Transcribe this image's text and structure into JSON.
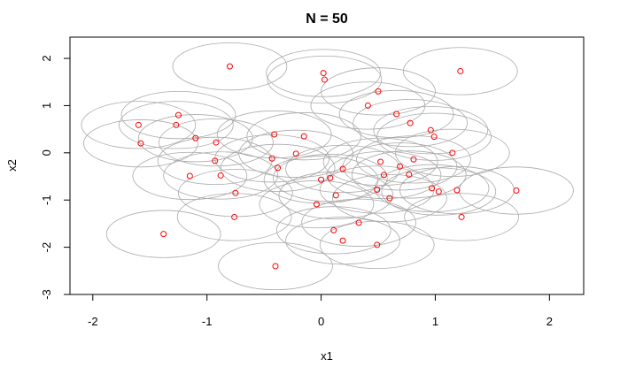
{
  "chart_data": {
    "type": "scatter",
    "title": "N = 50",
    "xlabel": "x1",
    "ylabel": "x2",
    "xlim": [
      -2.2,
      2.3
    ],
    "ylim": [
      -3.0,
      2.45
    ],
    "x_ticks": [
      -2,
      -1,
      0,
      1,
      2
    ],
    "y_ticks": [
      -3,
      -2,
      -1,
      0,
      1,
      2
    ],
    "x_tick_labels": [
      "-2",
      "-1",
      "0",
      "1",
      "2"
    ],
    "y_tick_labels": [
      "-3",
      "-2",
      "-1",
      "0",
      "1",
      "2"
    ],
    "grid": false,
    "circle_radius": 0.5,
    "point_color": "#ff0000",
    "circle_color": "#aaaaaa",
    "points": [
      {
        "x": -1.6,
        "y": 0.59
      },
      {
        "x": -1.58,
        "y": 0.2
      },
      {
        "x": -1.38,
        "y": -1.72
      },
      {
        "x": -1.25,
        "y": 0.8
      },
      {
        "x": -1.27,
        "y": 0.59
      },
      {
        "x": -1.15,
        "y": -0.49
      },
      {
        "x": -1.1,
        "y": 0.31
      },
      {
        "x": -0.92,
        "y": 0.22
      },
      {
        "x": -0.93,
        "y": -0.17
      },
      {
        "x": -0.88,
        "y": -0.48
      },
      {
        "x": -0.8,
        "y": 1.83
      },
      {
        "x": -0.75,
        "y": -0.85
      },
      {
        "x": -0.76,
        "y": -1.36
      },
      {
        "x": -0.41,
        "y": 0.39
      },
      {
        "x": -0.43,
        "y": -0.12
      },
      {
        "x": -0.38,
        "y": -0.32
      },
      {
        "x": -0.4,
        "y": -2.4
      },
      {
        "x": -0.15,
        "y": 0.35
      },
      {
        "x": -0.22,
        "y": -0.02
      },
      {
        "x": -0.04,
        "y": -1.09
      },
      {
        "x": 0.02,
        "y": 1.69
      },
      {
        "x": 0.03,
        "y": 1.55
      },
      {
        "x": 0.0,
        "y": -0.57
      },
      {
        "x": 0.08,
        "y": -0.53
      },
      {
        "x": 0.11,
        "y": -1.64
      },
      {
        "x": 0.13,
        "y": -0.9
      },
      {
        "x": 0.19,
        "y": -0.34
      },
      {
        "x": 0.19,
        "y": -1.86
      },
      {
        "x": 0.33,
        "y": -1.48
      },
      {
        "x": 0.41,
        "y": 1.0
      },
      {
        "x": 0.5,
        "y": 1.3
      },
      {
        "x": 0.49,
        "y": -0.78
      },
      {
        "x": 0.52,
        "y": -0.19
      },
      {
        "x": 0.55,
        "y": -0.47
      },
      {
        "x": 0.49,
        "y": -1.95
      },
      {
        "x": 0.6,
        "y": -0.96
      },
      {
        "x": 0.66,
        "y": 0.82
      },
      {
        "x": 0.69,
        "y": -0.29
      },
      {
        "x": 0.77,
        "y": -0.46
      },
      {
        "x": 0.78,
        "y": 0.63
      },
      {
        "x": 0.81,
        "y": -0.14
      },
      {
        "x": 0.96,
        "y": 0.48
      },
      {
        "x": 0.97,
        "y": -0.75
      },
      {
        "x": 0.99,
        "y": 0.34
      },
      {
        "x": 1.03,
        "y": -0.82
      },
      {
        "x": 1.15,
        "y": 0.0
      },
      {
        "x": 1.19,
        "y": -0.79
      },
      {
        "x": 1.22,
        "y": 1.73
      },
      {
        "x": 1.23,
        "y": -1.36
      },
      {
        "x": 1.71,
        "y": -0.8
      }
    ]
  }
}
